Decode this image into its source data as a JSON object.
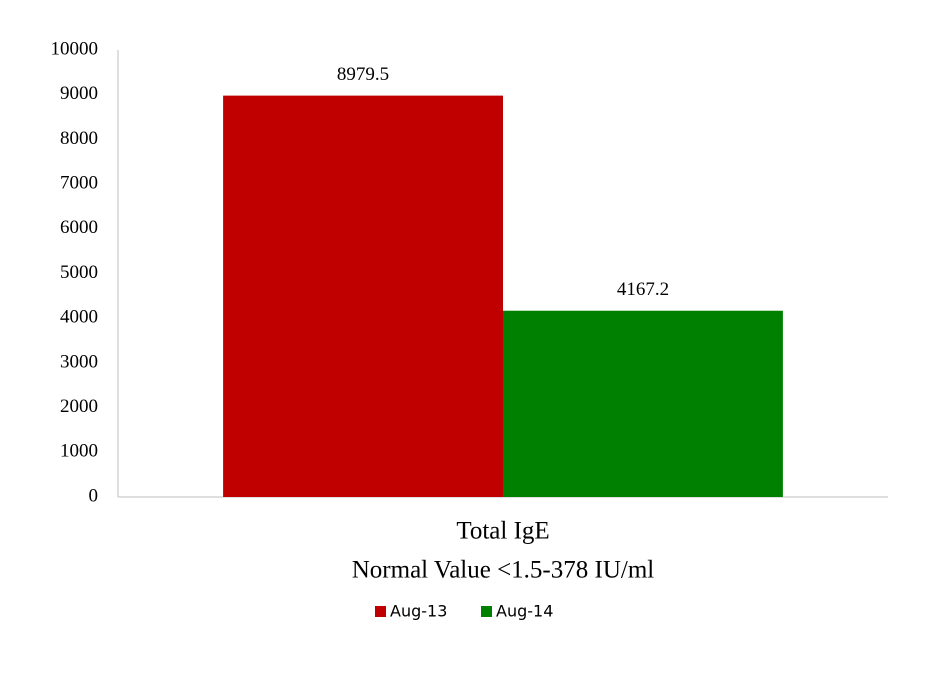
{
  "chart_data": {
    "type": "bar",
    "categories": [
      "Total IgE"
    ],
    "x_label": "Normal Value <1.5-378 IU/ml",
    "series": [
      {
        "name": "Aug-13",
        "color": "#c00000",
        "values": [
          8979.5
        ]
      },
      {
        "name": "Aug-14",
        "color": "#008000",
        "values": [
          4167.2
        ]
      }
    ],
    "ylim": [
      0,
      10000
    ],
    "yticks": [
      0,
      1000,
      2000,
      3000,
      4000,
      5000,
      6000,
      7000,
      8000,
      9000,
      10000
    ],
    "grid": false,
    "legend": "bottom"
  }
}
